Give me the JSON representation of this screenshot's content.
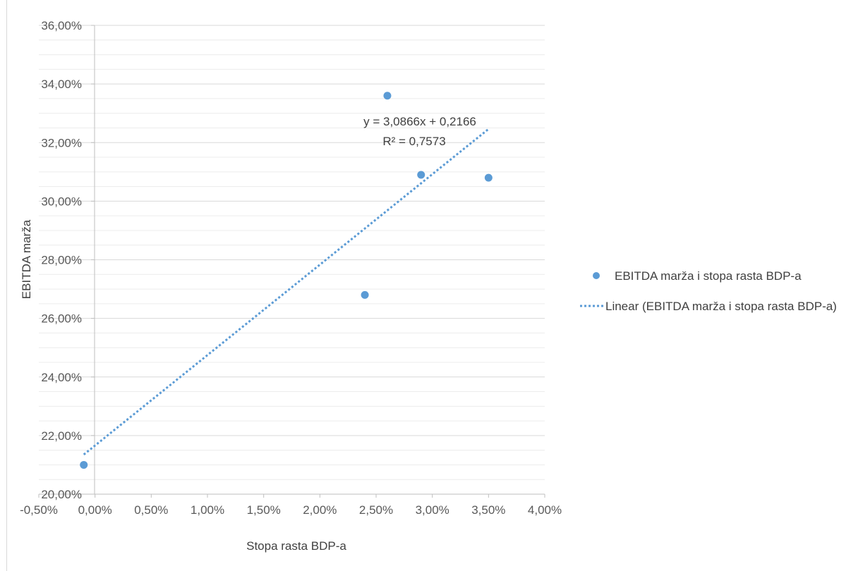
{
  "chart_data": {
    "type": "scatter",
    "title": "",
    "xlabel": "Stopa rasta BDP-a",
    "ylabel": "EBITDA marža",
    "xlim": [
      -0.005,
      0.04
    ],
    "ylim": [
      0.2,
      0.36
    ],
    "x_ticks": [
      "-0,50%",
      "0,00%",
      "0,50%",
      "1,00%",
      "1,50%",
      "2,00%",
      "2,50%",
      "3,00%",
      "3,50%",
      "4,00%"
    ],
    "y_ticks": [
      "20,00%",
      "22,00%",
      "24,00%",
      "26,00%",
      "28,00%",
      "30,00%",
      "32,00%",
      "34,00%",
      "36,00%"
    ],
    "grid": true,
    "legend_position": "right",
    "series": [
      {
        "name": "EBITDA marža i stopa rasta BDP-a",
        "marker_color": "#5b9bd5",
        "points": [
          {
            "x": -0.001,
            "y": 0.21
          },
          {
            "x": 0.024,
            "y": 0.268
          },
          {
            "x": 0.026,
            "y": 0.336
          },
          {
            "x": 0.029,
            "y": 0.309
          },
          {
            "x": 0.035,
            "y": 0.308
          }
        ]
      }
    ],
    "trendline": {
      "name": "Linear (EBITDA marža i stopa rasta BDP-a)",
      "type": "linear",
      "slope": 3.0866,
      "intercept": 0.2166,
      "x_range": [
        -0.001,
        0.035
      ],
      "color": "#5b9bd5",
      "equation_label": "y = 3,0866x + 0,2166",
      "r2_label": "R² = 0,7573"
    }
  }
}
